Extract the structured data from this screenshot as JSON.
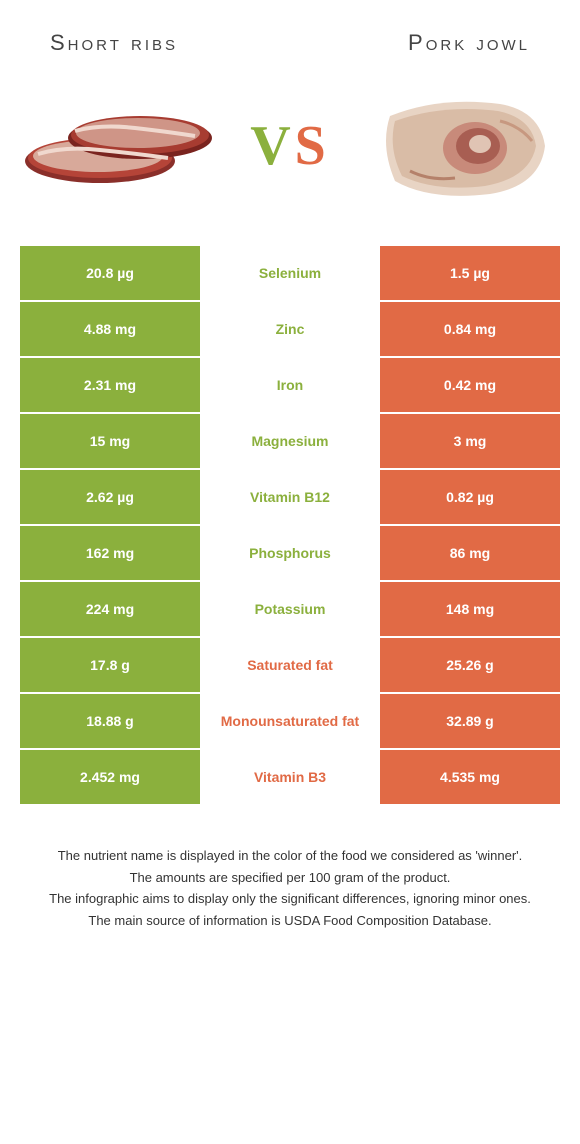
{
  "colors": {
    "left": "#8bb03d",
    "right": "#e16a45",
    "vs_v": "#8bb03d",
    "vs_s": "#e16a45",
    "title": "#444444",
    "footer": "#333333"
  },
  "titles": {
    "left": "Short ribs",
    "right": "Pork jowl"
  },
  "vs": {
    "v": "V",
    "s": "S"
  },
  "rows": [
    {
      "left": "20.8 µg",
      "label": "Selenium",
      "right": "1.5 µg",
      "winner": "left"
    },
    {
      "left": "4.88 mg",
      "label": "Zinc",
      "right": "0.84 mg",
      "winner": "left"
    },
    {
      "left": "2.31 mg",
      "label": "Iron",
      "right": "0.42 mg",
      "winner": "left"
    },
    {
      "left": "15 mg",
      "label": "Magnesium",
      "right": "3 mg",
      "winner": "left"
    },
    {
      "left": "2.62 µg",
      "label": "Vitamin B12",
      "right": "0.82 µg",
      "winner": "left"
    },
    {
      "left": "162 mg",
      "label": "Phosphorus",
      "right": "86 mg",
      "winner": "left"
    },
    {
      "left": "224 mg",
      "label": "Potassium",
      "right": "148 mg",
      "winner": "left"
    },
    {
      "left": "17.8 g",
      "label": "Saturated fat",
      "right": "25.26 g",
      "winner": "right"
    },
    {
      "left": "18.88 g",
      "label": "Monounsaturated fat",
      "right": "32.89 g",
      "winner": "right"
    },
    {
      "left": "2.452 mg",
      "label": "Vitamin B3",
      "right": "4.535 mg",
      "winner": "right"
    }
  ],
  "footer": [
    "The nutrient name is displayed in the color of the food we considered as 'winner'.",
    "The amounts are specified per 100 gram of the product.",
    "The infographic aims to display only the significant differences, ignoring minor ones.",
    "The main source of information is USDA Food Composition Database."
  ]
}
